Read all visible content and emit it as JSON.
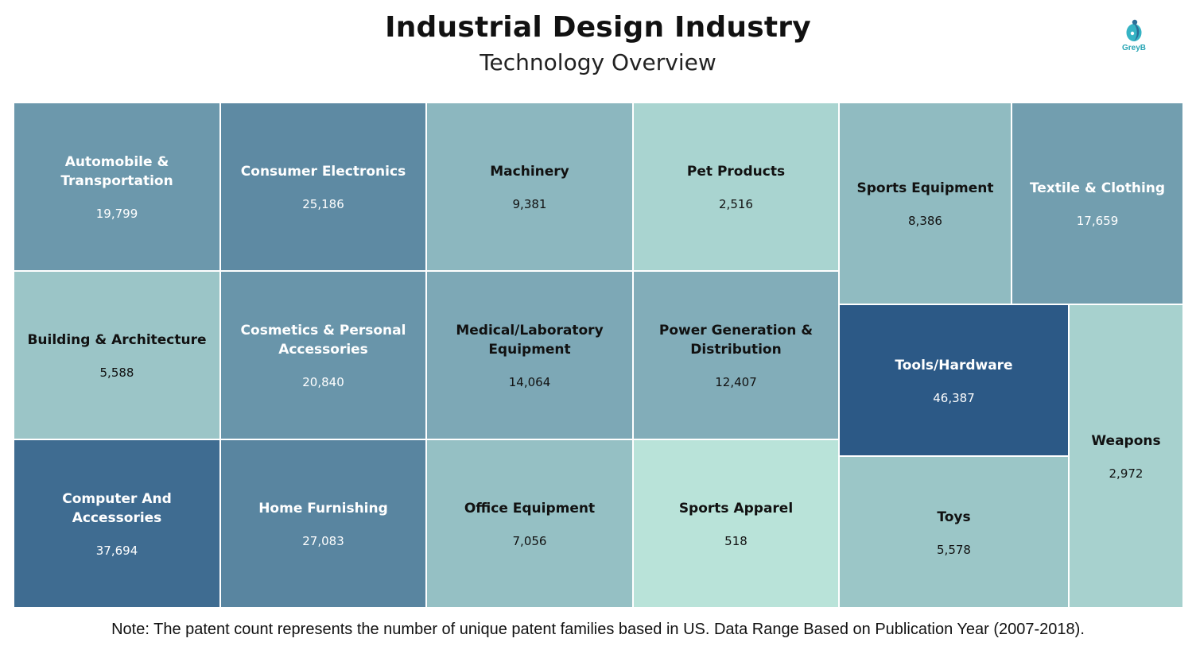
{
  "brand": {
    "logo_text": "GreyB"
  },
  "footer": {
    "note": "Note: The patent count represents the number of unique patent families based in US. Data Range Based on Publication Year (2007-2018)."
  },
  "chart_data": {
    "type": "treemap",
    "title": "Industrial Design Industry",
    "subtitle": "Technology Overview",
    "value_label": "patent count",
    "color_scale": [
      "#b9e3d9",
      "#2c5986"
    ],
    "items": [
      {
        "label": "Automobile & Transportation",
        "value": 19799,
        "value_text": "19,799"
      },
      {
        "label": "Consumer Electronics",
        "value": 25186,
        "value_text": "25,186"
      },
      {
        "label": "Machinery",
        "value": 9381,
        "value_text": "9,381"
      },
      {
        "label": "Pet Products",
        "value": 2516,
        "value_text": "2,516"
      },
      {
        "label": "Sports Equipment",
        "value": 8386,
        "value_text": "8,386"
      },
      {
        "label": "Textile & Clothing",
        "value": 17659,
        "value_text": "17,659"
      },
      {
        "label": "Building & Architecture",
        "value": 5588,
        "value_text": "5,588"
      },
      {
        "label": "Cosmetics & Personal Accessories",
        "value": 20840,
        "value_text": "20,840"
      },
      {
        "label": "Medical/Laboratory Equipment",
        "value": 14064,
        "value_text": "14,064"
      },
      {
        "label": "Power Generation & Distribution",
        "value": 12407,
        "value_text": "12,407"
      },
      {
        "label": "Tools/Hardware",
        "value": 46387,
        "value_text": "46,387"
      },
      {
        "label": "Weapons",
        "value": 2972,
        "value_text": "2,972"
      },
      {
        "label": "Computer And Accessories",
        "value": 37694,
        "value_text": "37,694"
      },
      {
        "label": "Home Furnishing",
        "value": 27083,
        "value_text": "27,083"
      },
      {
        "label": "Office Equipment",
        "value": 7056,
        "value_text": "7,056"
      },
      {
        "label": "Sports Apparel",
        "value": 518,
        "value_text": "518"
      },
      {
        "label": "Toys",
        "value": 5578,
        "value_text": "5,578"
      }
    ]
  }
}
